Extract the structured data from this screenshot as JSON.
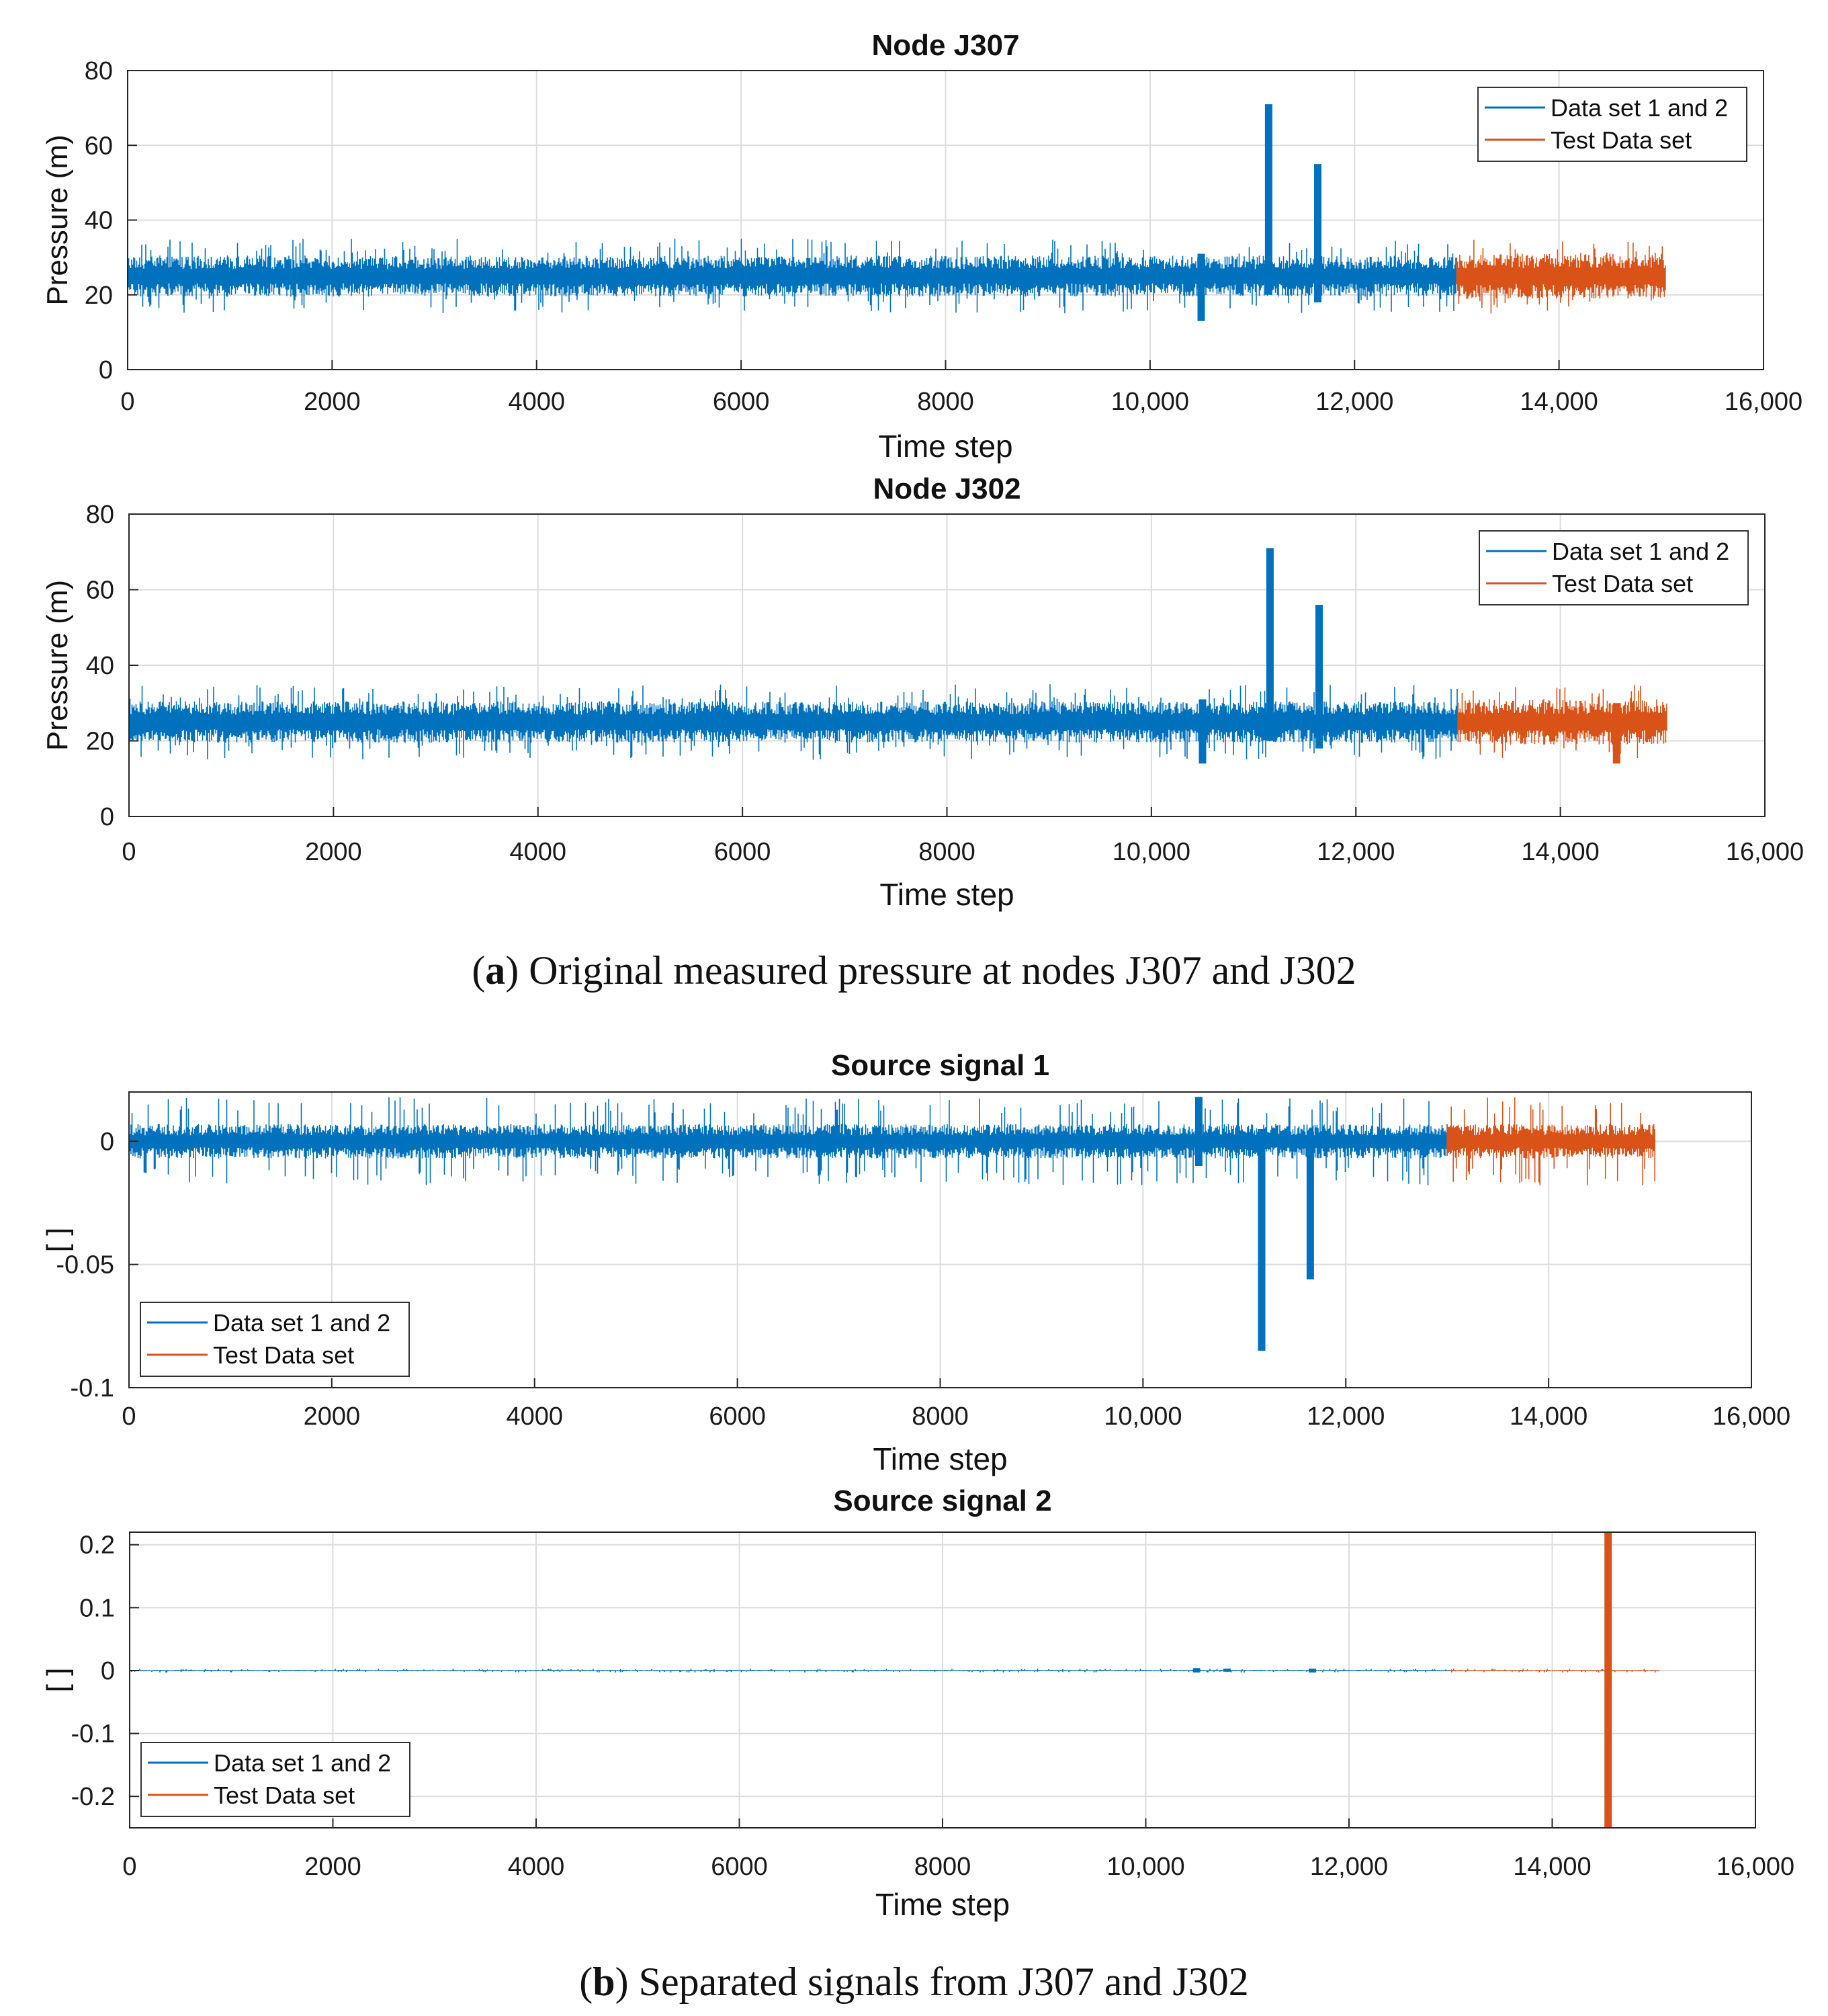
{
  "colors": {
    "train": "#0072BD",
    "test": "#D95319",
    "grid": "#dcdcdc",
    "axis": "#262626"
  },
  "captions": {
    "a": {
      "letter": "a",
      "text": " Original measured pressure at nodes J307 and J302"
    },
    "b": {
      "letter": "b",
      "text": " Separated signals from J307 and J302"
    }
  },
  "chart_data": [
    {
      "id": "p1",
      "type": "line",
      "title": "Node J307",
      "xlabel": "Time step",
      "ylabel": "Pressure (m)",
      "xlim": [
        0,
        16000
      ],
      "ylim": [
        0,
        80
      ],
      "xticks": [
        0,
        2000,
        4000,
        6000,
        8000,
        10000,
        12000,
        14000,
        16000
      ],
      "xtick_labels": [
        "0",
        "2000",
        "4000",
        "6000",
        "8000",
        "10,000",
        "12,000",
        "14,000",
        "16,000"
      ],
      "yticks": [
        0,
        20,
        40,
        60,
        80
      ],
      "ytick_labels": [
        "0",
        "20",
        "40",
        "60",
        "80"
      ],
      "legend": {
        "position": "top-right",
        "entries": [
          "Data set 1 and 2",
          "Test Data set"
        ]
      },
      "series": [
        {
          "name": "Data set 1 and 2",
          "x_range": [
            0,
            13000
          ],
          "baseline": 25,
          "amplitude": 5.5,
          "max_excursion": 10,
          "events": [
            {
              "x": 10500,
              "low": 13,
              "high": 31
            },
            {
              "x": 11160,
              "low": 20,
              "high": 71
            },
            {
              "x": 11640,
              "low": 18,
              "high": 55
            }
          ]
        },
        {
          "name": "Test Data set",
          "x_range": [
            13000,
            15050
          ],
          "baseline": 25,
          "amplitude": 6,
          "max_excursion": 10,
          "events": []
        }
      ]
    },
    {
      "id": "p2",
      "type": "line",
      "title": "Node J302",
      "xlabel": "Time step",
      "ylabel": "Pressure (m)",
      "xlim": [
        0,
        16000
      ],
      "ylim": [
        0,
        80
      ],
      "xticks": [
        0,
        2000,
        4000,
        6000,
        8000,
        10000,
        12000,
        14000,
        16000
      ],
      "xtick_labels": [
        "0",
        "2000",
        "4000",
        "6000",
        "8000",
        "10,000",
        "12,000",
        "14,000",
        "16,000"
      ],
      "yticks": [
        0,
        20,
        40,
        60,
        80
      ],
      "ytick_labels": [
        "0",
        "20",
        "40",
        "60",
        "80"
      ],
      "legend": {
        "position": "top-right",
        "entries": [
          "Data set 1 and 2",
          "Test Data set"
        ]
      },
      "series": [
        {
          "name": "Data set 1 and 2",
          "x_range": [
            0,
            13000
          ],
          "baseline": 25,
          "amplitude": 5.5,
          "max_excursion": 10,
          "events": [
            {
              "x": 10500,
              "low": 14,
              "high": 31
            },
            {
              "x": 11160,
              "low": 20,
              "high": 71
            },
            {
              "x": 11640,
              "low": 18,
              "high": 56
            }
          ]
        },
        {
          "name": "Test Data set",
          "x_range": [
            13000,
            15050
          ],
          "baseline": 25,
          "amplitude": 6,
          "max_excursion": 10,
          "events": [
            {
              "x": 14550,
              "low": 14,
              "high": 30
            }
          ]
        }
      ]
    },
    {
      "id": "p3",
      "type": "line",
      "title": "Source signal 1",
      "xlabel": "Time step",
      "ylabel": "[ ]",
      "xlim": [
        0,
        16000
      ],
      "ylim": [
        -0.1,
        0.02
      ],
      "xticks": [
        0,
        2000,
        4000,
        6000,
        8000,
        10000,
        12000,
        14000,
        16000
      ],
      "xtick_labels": [
        "0",
        "2000",
        "4000",
        "6000",
        "8000",
        "10,000",
        "12,000",
        "14,000",
        "16,000"
      ],
      "yticks": [
        -0.1,
        -0.05,
        0
      ],
      "ytick_labels": [
        "-0.1",
        "-0.05",
        "0"
      ],
      "legend": {
        "position": "bottom-left",
        "entries": [
          "Data set 1 and 2",
          "Test Data set"
        ]
      },
      "series": [
        {
          "name": "Data set 1 and 2",
          "x_range": [
            0,
            13000
          ],
          "baseline": 0,
          "amplitude": 0.007,
          "max_excursion": 0.018,
          "events": [
            {
              "x": 10550,
              "low": -0.01,
              "high": 0.018
            },
            {
              "x": 11170,
              "low": -0.085,
              "high": 0.005
            },
            {
              "x": 11650,
              "low": -0.056,
              "high": 0.004
            }
          ]
        },
        {
          "name": "Test Data set",
          "x_range": [
            13000,
            15050
          ],
          "baseline": 0,
          "amplitude": 0.007,
          "max_excursion": 0.018,
          "events": []
        }
      ]
    },
    {
      "id": "p4",
      "type": "line",
      "title": "Source signal 2",
      "xlabel": "Time step",
      "ylabel": "[ ]",
      "xlim": [
        0,
        16000
      ],
      "ylim": [
        -0.25,
        0.22
      ],
      "xticks": [
        0,
        2000,
        4000,
        6000,
        8000,
        10000,
        12000,
        14000,
        16000
      ],
      "xtick_labels": [
        "0",
        "2000",
        "4000",
        "6000",
        "8000",
        "10,000",
        "12,000",
        "14,000",
        "16,000"
      ],
      "yticks": [
        -0.2,
        -0.1,
        0,
        0.1,
        0.2
      ],
      "ytick_labels": [
        "-0.2",
        "-0.1",
        "0",
        "0.1",
        "0.2"
      ],
      "legend": {
        "position": "bottom-left",
        "entries": [
          "Data set 1 and 2",
          "Test Data set"
        ]
      },
      "series": [
        {
          "name": "Data set 1 and 2",
          "x_range": [
            0,
            13000
          ],
          "baseline": 0,
          "amplitude": 0.001,
          "max_excursion": 0.003,
          "events": [
            {
              "x": 10500,
              "low": -0.003,
              "high": 0.004
            },
            {
              "x": 10800,
              "low": -0.002,
              "high": 0.003
            },
            {
              "x": 11640,
              "low": -0.003,
              "high": 0.003
            }
          ]
        },
        {
          "name": "Test Data set",
          "x_range": [
            13000,
            15050
          ],
          "baseline": 0,
          "amplitude": 0.001,
          "max_excursion": 0.003,
          "events": [
            {
              "x": 14550,
              "low": -0.25,
              "high": 0.22
            }
          ]
        }
      ]
    }
  ]
}
